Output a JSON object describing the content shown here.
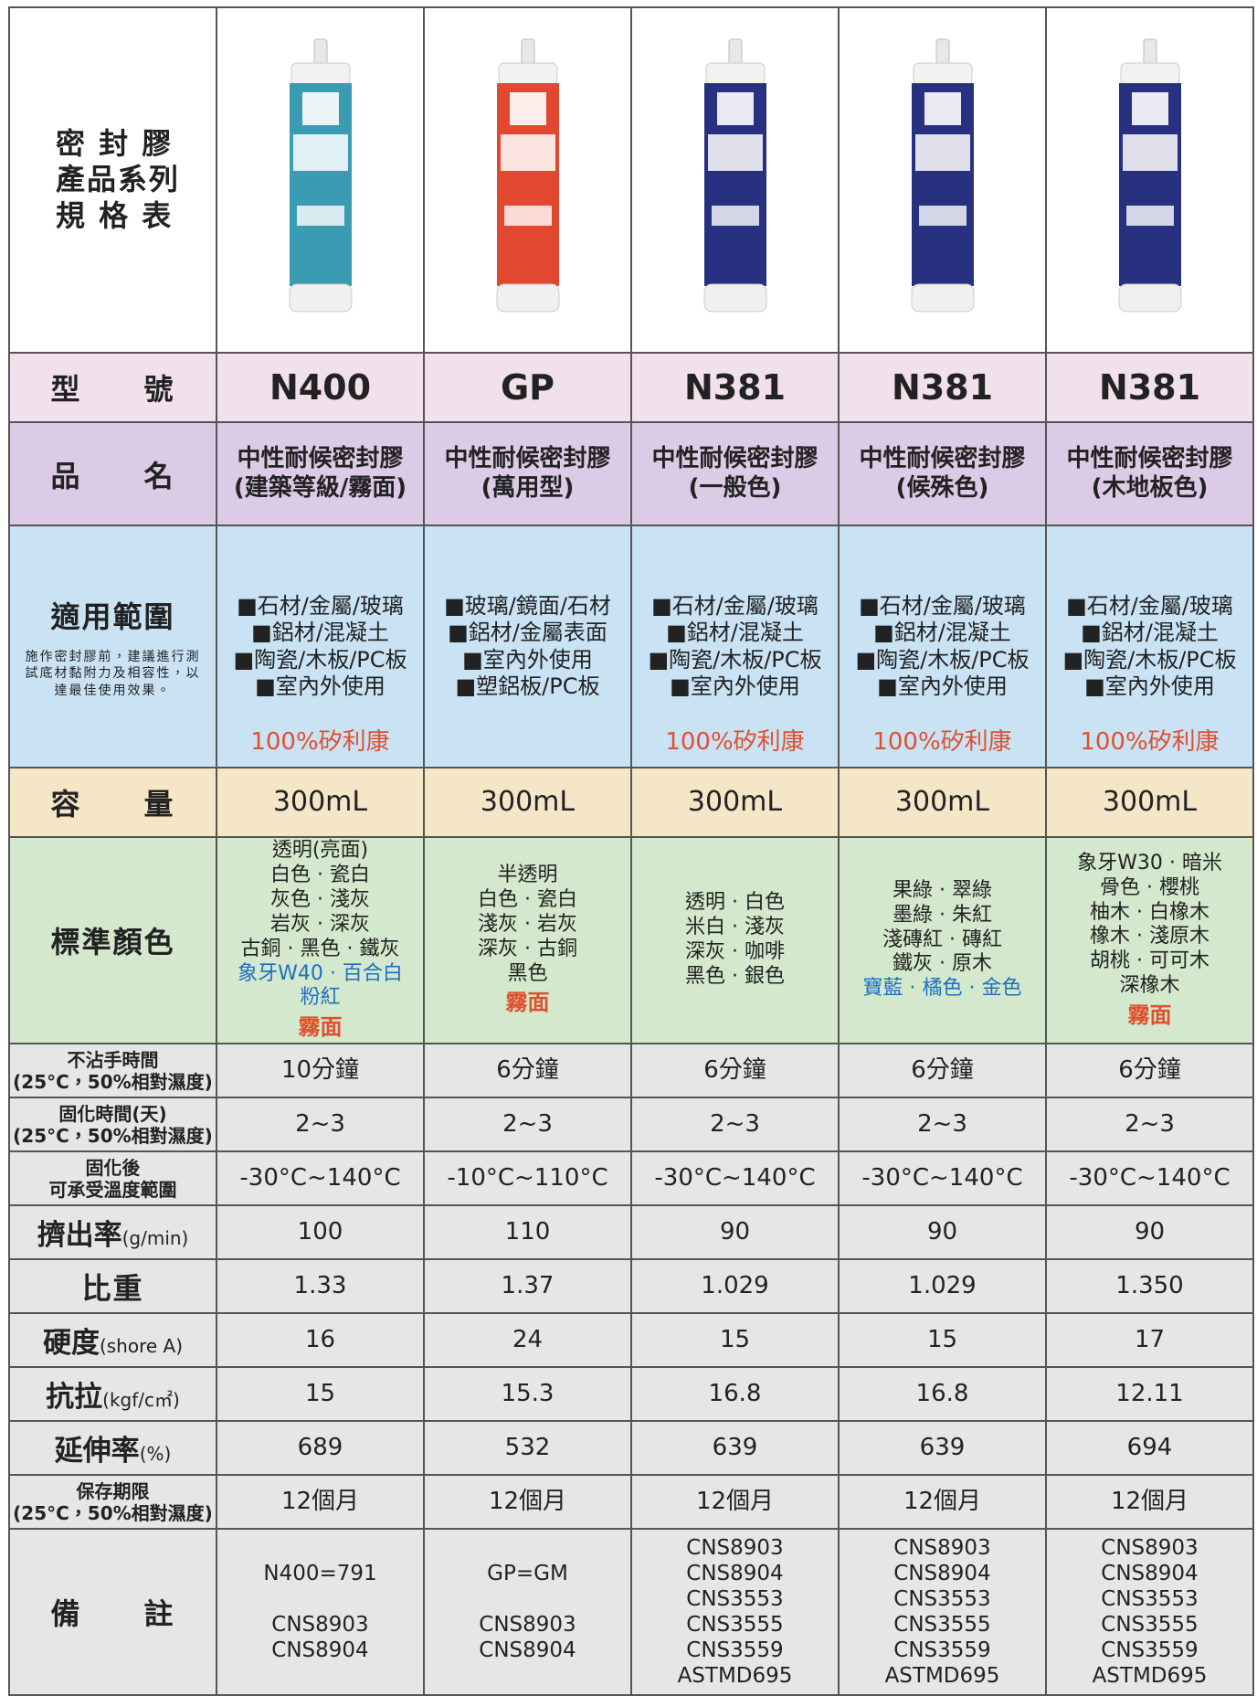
{
  "header": {
    "title": [
      "密 封 膠",
      "產品系列",
      "規 格 表"
    ]
  },
  "table": {
    "rows": [
      {
        "label": "型　　號",
        "cells": [
          "N400",
          "GP",
          "N381",
          "N381",
          "N381"
        ]
      },
      {
        "label": "品　　名",
        "cells": [
          [
            "中性耐候密封膠",
            "(建築等級/霧面)"
          ],
          [
            "中性耐候密封膠",
            "(萬用型)"
          ],
          [
            "中性耐候密封膠",
            "(一般色)"
          ],
          [
            "中性耐候密封膠",
            "(候殊色)"
          ],
          [
            "中性耐候密封膠",
            "(木地板色)"
          ]
        ]
      },
      {
        "label": "適用範圍",
        "note": "施作密封膠前，建議進行測試底材黏附力及相容性，以達最佳使用效果。",
        "cells": [
          {
            "lines": [
              "■石材/金屬/玻璃",
              "■鋁材/混凝土",
              "■陶瓷/木板/PC板",
              "■室內外使用"
            ],
            "tag": "100%矽利康"
          },
          {
            "lines": [
              "■玻璃/鏡面/石材",
              "■鋁材/金屬表面",
              "■室內外使用",
              "■塑鋁板/PC板"
            ]
          },
          {
            "lines": [
              "■石材/金屬/玻璃",
              "■鋁材/混凝土",
              "■陶瓷/木板/PC板",
              "■室內外使用"
            ],
            "tag": "100%矽利康"
          },
          {
            "lines": [
              "■石材/金屬/玻璃",
              "■鋁材/混凝土",
              "■陶瓷/木板/PC板",
              "■室內外使用"
            ],
            "tag": "100%矽利康"
          },
          {
            "lines": [
              "■石材/金屬/玻璃",
              "■鋁材/混凝土",
              "■陶瓷/木板/PC板",
              "■室內外使用"
            ],
            "tag": "100%矽利康"
          }
        ]
      },
      {
        "label": "容　　量",
        "cells": [
          "300mL",
          "300mL",
          "300mL",
          "300mL",
          "300mL"
        ]
      },
      {
        "label": "標準顏色",
        "cells": [
          {
            "lines": [
              "透明(亮面)",
              "白色 · 瓷白",
              "灰色 · 淺灰",
              "岩灰 · 深灰",
              "古銅 · 黑色 · 鐵灰"
            ],
            "accent": [
              "象牙W40 · 百合白",
              "粉紅"
            ],
            "tag": "霧面"
          },
          {
            "lines": [
              "半透明",
              "白色 · 瓷白",
              "淺灰 · 岩灰",
              "深灰 · 古銅",
              "黑色"
            ],
            "tag": "霧面"
          },
          {
            "lines": [
              "透明 · 白色",
              "米白 · 淺灰",
              "深灰 · 咖啡",
              "黑色 · 銀色"
            ]
          },
          {
            "lines": [
              "果綠 · 翠綠",
              "墨綠 · 朱紅",
              "淺磚紅 · 磚紅",
              "鐵灰 · 原木"
            ],
            "accent": [
              "寶藍 · 橘色 · 金色"
            ]
          },
          {
            "lines": [
              "象牙W30 · 暗米",
              "骨色 · 櫻桃",
              "柚木 · 白橡木",
              "橡木 · 淺原木",
              "胡桃 · 可可木",
              "深橡木"
            ],
            "tag": "霧面"
          }
        ]
      },
      {
        "label": [
          "不沾手時間",
          "(25°C，50%相對濕度)"
        ],
        "cells": [
          "10分鐘",
          "6分鐘",
          "6分鐘",
          "6分鐘",
          "6分鐘"
        ]
      },
      {
        "label": [
          "固化時間(天)",
          "(25°C，50%相對濕度)"
        ],
        "cells": [
          "2~3",
          "2~3",
          "2~3",
          "2~3",
          "2~3"
        ]
      },
      {
        "label": [
          "固化後",
          "可承受溫度範圍"
        ],
        "cells": [
          "-30°C~140°C",
          "-10°C~110°C",
          "-30°C~140°C",
          "-30°C~140°C",
          "-30°C~140°C"
        ]
      },
      {
        "label": "擠出率",
        "unit": "(g/min)",
        "cells": [
          "100",
          "110",
          "90",
          "90",
          "90"
        ]
      },
      {
        "label": "比重",
        "cells": [
          "1.33",
          "1.37",
          "1.029",
          "1.029",
          "1.350"
        ]
      },
      {
        "label": "硬度",
        "unit": "(shore A)",
        "cells": [
          "16",
          "24",
          "15",
          "15",
          "17"
        ]
      },
      {
        "label": "抗拉",
        "unit": "(kgf/c㎡)",
        "cells": [
          "15",
          "15.3",
          "16.8",
          "16.8",
          "12.11"
        ]
      },
      {
        "label": "延伸率",
        "unit": "(%)",
        "cells": [
          "689",
          "532",
          "639",
          "639",
          "694"
        ]
      },
      {
        "label": [
          "保存期限",
          "(25°C，50%相對濕度)"
        ],
        "cells": [
          "12個月",
          "12個月",
          "12個月",
          "12個月",
          "12個月"
        ]
      },
      {
        "label": "備　　註",
        "cells": [
          [
            [
              "N400=791"
            ],
            [
              "CNS8903",
              "CNS8904"
            ]
          ],
          [
            [
              "GP=GM"
            ],
            [
              "CNS8903",
              "CNS8904"
            ]
          ],
          [
            [
              "CNS8903",
              "CNS8904",
              "CNS3553",
              "CNS3555",
              "CNS3559",
              "ASTMD695"
            ]
          ],
          [
            [
              "CNS8903",
              "CNS8904",
              "CNS3553",
              "CNS3555",
              "CNS3559",
              "ASTMD695"
            ]
          ],
          [
            [
              "CNS8903",
              "CNS8904",
              "CNS3553",
              "CNS3555",
              "CNS3559",
              "ASTMD695"
            ]
          ]
        ]
      }
    ]
  }
}
